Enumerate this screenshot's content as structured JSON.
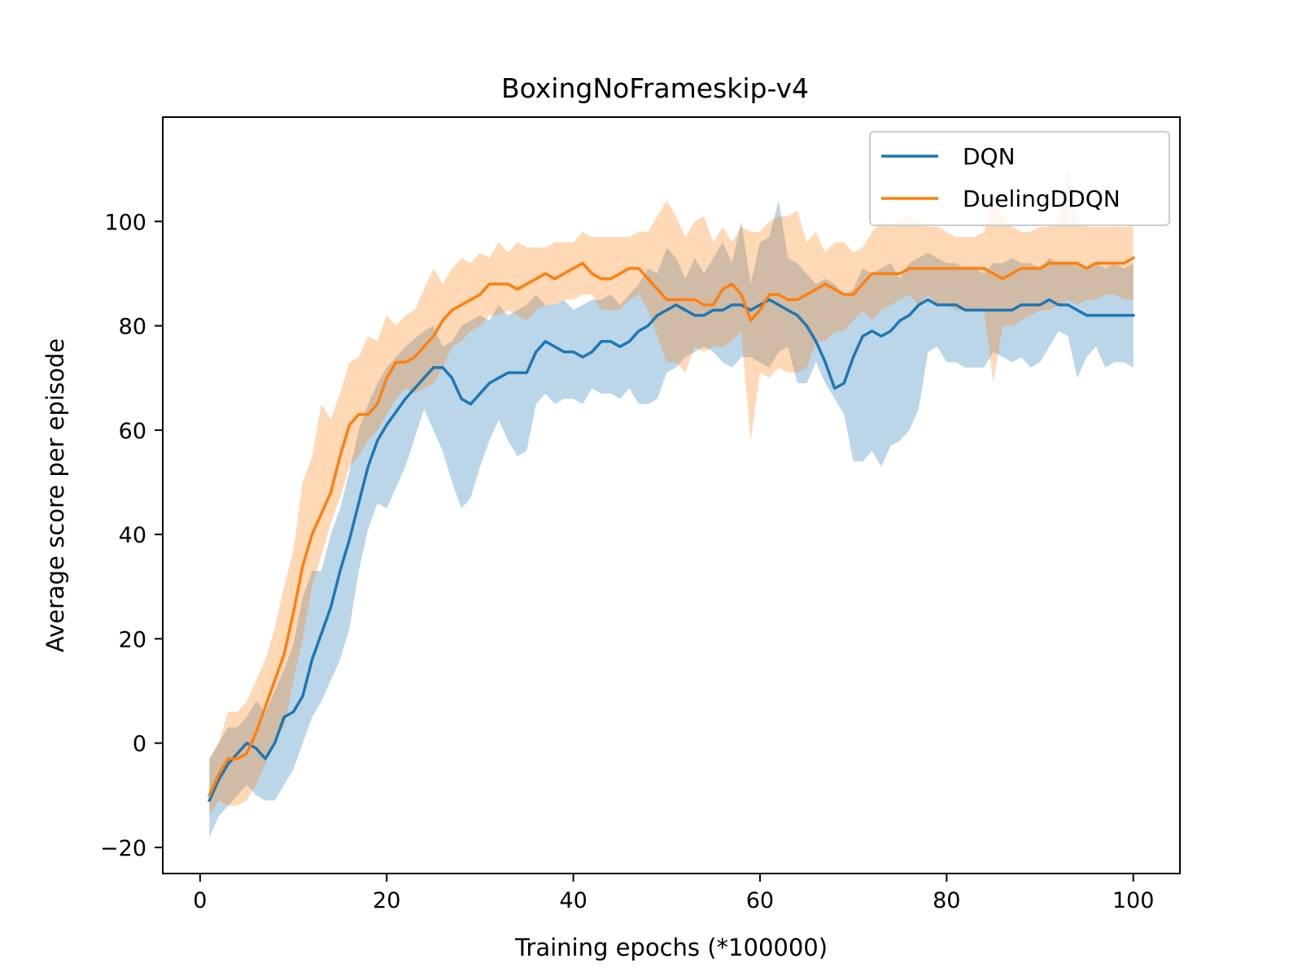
{
  "chart_data": {
    "type": "line",
    "title": "BoxingNoFrameskip-v4",
    "xlabel": "Training epochs (*100000)",
    "ylabel": "Average score per episode",
    "xlim": [
      -4,
      105
    ],
    "ylim": [
      -25,
      120
    ],
    "xticks": [
      0,
      20,
      40,
      60,
      80,
      100
    ],
    "yticks": [
      -20,
      0,
      20,
      40,
      60,
      80,
      100
    ],
    "xtick_labels": [
      "0",
      "20",
      "40",
      "60",
      "80",
      "100"
    ],
    "ytick_labels": [
      "−20",
      "0",
      "20",
      "40",
      "60",
      "80",
      "100"
    ],
    "grid": false,
    "legend_position": "top-right",
    "series": [
      {
        "name": "DQN",
        "color": "#1f77b4",
        "x": [
          1,
          2,
          3,
          4,
          5,
          6,
          7,
          8,
          9,
          10,
          11,
          12,
          13,
          14,
          15,
          16,
          17,
          18,
          19,
          20,
          22,
          24,
          25,
          26,
          27,
          28,
          29,
          30,
          31,
          32,
          33,
          34,
          35,
          36,
          37,
          38,
          39,
          40,
          41,
          42,
          43,
          44,
          45,
          46,
          47,
          48,
          49,
          50,
          51,
          52,
          53,
          54,
          55,
          56,
          57,
          58,
          59,
          60,
          61,
          62,
          63,
          64,
          65,
          66,
          67,
          68,
          69,
          70,
          71,
          72,
          73,
          74,
          75,
          76,
          77,
          78,
          79,
          80,
          81,
          82,
          83,
          84,
          85,
          86,
          87,
          88,
          89,
          90,
          91,
          92,
          93,
          94,
          95,
          96,
          97,
          98,
          99,
          100
        ],
        "mean": [
          -11,
          -7,
          -4,
          -2,
          0,
          -1,
          -3,
          0,
          5,
          6,
          9,
          16,
          21,
          26,
          33,
          39,
          46,
          53,
          58,
          61,
          66,
          70,
          72,
          72,
          70,
          66,
          65,
          67,
          69,
          70,
          71,
          71,
          71,
          75,
          77,
          76,
          75,
          75,
          74,
          75,
          77,
          77,
          76,
          77,
          79,
          80,
          82,
          83,
          84,
          83,
          82,
          82,
          83,
          83,
          84,
          84,
          83,
          84,
          85,
          84,
          83,
          82,
          80,
          77,
          73,
          68,
          69,
          74,
          78,
          79,
          78,
          79,
          81,
          82,
          84,
          85,
          84,
          84,
          84,
          83,
          83,
          83,
          83,
          83,
          83,
          84,
          84,
          84,
          85,
          84,
          84,
          83,
          82,
          82,
          82,
          82,
          82,
          82
        ],
        "upper": [
          -3,
          0,
          3,
          3,
          5,
          8,
          6,
          10,
          14,
          19,
          28,
          33,
          33,
          40,
          45,
          52,
          60,
          65,
          69,
          72,
          76,
          79,
          80,
          76,
          77,
          80,
          81,
          82,
          81,
          84,
          82,
          83,
          84,
          86,
          84,
          84,
          85,
          83,
          84,
          85,
          85,
          86,
          84,
          86,
          88,
          91,
          90,
          95,
          93,
          89,
          93,
          90,
          93,
          96,
          92,
          100,
          88,
          96,
          97,
          104,
          93,
          92,
          90,
          88,
          89,
          88,
          86,
          87,
          91,
          90,
          91,
          92,
          89,
          92,
          93,
          94,
          93,
          92,
          92,
          91,
          91,
          90,
          92,
          92,
          93,
          92,
          92,
          91,
          93,
          92,
          92,
          92,
          91,
          92,
          91,
          92,
          91,
          92
        ],
        "lower": [
          -18,
          -14,
          -12,
          -10,
          -8,
          -10,
          -11,
          -11,
          -8,
          -5,
          0,
          5,
          8,
          12,
          16,
          22,
          33,
          41,
          46,
          45,
          53,
          64,
          60,
          56,
          50,
          45,
          47,
          53,
          58,
          62,
          58,
          55,
          56,
          65,
          67,
          65,
          66,
          66,
          65,
          68,
          67,
          67,
          66,
          68,
          65,
          65,
          66,
          71,
          72,
          74,
          75,
          76,
          75,
          73,
          72,
          74,
          74,
          73,
          72,
          75,
          76,
          69,
          69,
          73,
          69,
          66,
          63,
          54,
          54,
          56,
          53,
          57,
          58,
          60,
          64,
          75,
          76,
          73,
          73,
          72,
          72,
          72,
          75,
          74,
          73,
          74,
          72,
          73,
          76,
          79,
          78,
          70,
          74,
          76,
          72,
          73,
          73,
          72
        ]
      },
      {
        "name": "DuelingDDQN",
        "color": "#ff7f0e",
        "x": [
          1,
          2,
          3,
          4,
          5,
          6,
          7,
          8,
          9,
          10,
          11,
          12,
          13,
          14,
          15,
          16,
          17,
          18,
          19,
          20,
          21,
          22,
          23,
          24,
          25,
          26,
          27,
          28,
          29,
          30,
          31,
          32,
          33,
          34,
          35,
          36,
          37,
          38,
          39,
          40,
          41,
          42,
          43,
          44,
          45,
          46,
          47,
          48,
          49,
          50,
          51,
          52,
          53,
          54,
          55,
          56,
          57,
          58,
          59,
          60,
          61,
          62,
          63,
          64,
          65,
          66,
          67,
          68,
          69,
          70,
          71,
          72,
          73,
          74,
          75,
          76,
          77,
          78,
          79,
          80,
          81,
          82,
          83,
          84,
          85,
          86,
          87,
          88,
          89,
          90,
          91,
          92,
          93,
          94,
          95,
          96,
          97,
          98,
          99,
          100
        ],
        "mean": [
          -10,
          -6,
          -3,
          -3,
          -2,
          2,
          7,
          12,
          17,
          25,
          34,
          40,
          44,
          48,
          55,
          61,
          63,
          63,
          65,
          70,
          73,
          73,
          74,
          76,
          78,
          81,
          83,
          84,
          85,
          86,
          88,
          88,
          88,
          87,
          88,
          89,
          90,
          89,
          90,
          91,
          92,
          90,
          89,
          89,
          90,
          91,
          91,
          89,
          87,
          85,
          85,
          85,
          85,
          84,
          84,
          87,
          88,
          86,
          81,
          83,
          86,
          86,
          85,
          85,
          86,
          87,
          88,
          87,
          86,
          86,
          88,
          90,
          90,
          90,
          90,
          91,
          91,
          91,
          91,
          91,
          91,
          91,
          91,
          91,
          90,
          89,
          90,
          91,
          91,
          91,
          92,
          92,
          92,
          92,
          91,
          92,
          92,
          92,
          92,
          93
        ],
        "upper": [
          -3,
          0,
          6,
          6,
          8,
          12,
          16,
          22,
          30,
          37,
          50,
          55,
          65,
          62,
          67,
          73,
          74,
          78,
          77,
          82,
          80,
          82,
          83,
          87,
          91,
          88,
          91,
          93,
          92,
          94,
          93,
          96,
          94,
          96,
          95,
          95,
          95,
          96,
          96,
          96,
          98,
          97,
          97,
          97,
          97,
          97,
          98,
          98,
          101,
          104,
          101,
          97,
          100,
          101,
          96,
          99,
          96,
          99,
          98,
          98,
          100,
          101,
          101,
          102,
          96,
          98,
          94,
          96,
          96,
          94,
          95,
          98,
          100,
          99,
          100,
          101,
          100,
          99,
          99,
          98,
          97,
          97,
          97,
          98,
          106,
          101,
          99,
          98,
          98,
          99,
          99,
          100,
          110,
          100,
          99,
          99,
          99,
          99,
          99,
          99
        ],
        "lower": [
          -14,
          -11,
          -12,
          -12,
          -11,
          -8,
          -4,
          1,
          3,
          12,
          20,
          30,
          36,
          42,
          47,
          53,
          55,
          58,
          60,
          63,
          66,
          68,
          67,
          68,
          69,
          72,
          76,
          77,
          79,
          80,
          82,
          82,
          83,
          82,
          81,
          83,
          84,
          84,
          85,
          85,
          86,
          86,
          83,
          83,
          83,
          85,
          86,
          83,
          78,
          73,
          73,
          71,
          76,
          75,
          76,
          76,
          77,
          79,
          58,
          71,
          70,
          72,
          71,
          71,
          72,
          77,
          77,
          79,
          79,
          81,
          83,
          81,
          83,
          84,
          85,
          86,
          84,
          86,
          84,
          84,
          83,
          83,
          83,
          83,
          69,
          80,
          80,
          81,
          82,
          83,
          83,
          84,
          85,
          84,
          85,
          85,
          86,
          86,
          85,
          85
        ]
      }
    ]
  }
}
